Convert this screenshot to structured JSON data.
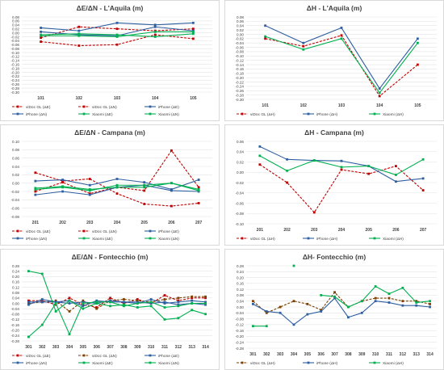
{
  "chart_data": [
    {
      "type": "line",
      "title": "ΔE/ΔN - L'Aquila (m)",
      "categories": [
        "101",
        "102",
        "103",
        "104",
        "105"
      ],
      "ylim": [
        -0.3,
        0.08
      ],
      "ystep": 0.02,
      "ydecimals": 2,
      "grid": true,
      "legend_columns": 3,
      "series": [
        {
          "name": "viDoc GL (ΔE)",
          "color": "#c00000",
          "dashed": true,
          "marker": "square",
          "values": [
            -0.045,
            -0.065,
            -0.06,
            -0.01,
            -0.03
          ]
        },
        {
          "name": "viDoc GL (ΔN)",
          "color": "#c00000",
          "dashed": true,
          "marker": "square",
          "values": [
            -0.025,
            0.03,
            0.02,
            0.01,
            0.02
          ]
        },
        {
          "name": "iPhone (ΔE)",
          "color": "#2e5fa1",
          "dashed": false,
          "marker": "square",
          "values": [
            0.025,
            0.01,
            0.05,
            0.04,
            0.05
          ]
        },
        {
          "name": "iPhone (ΔN)",
          "color": "#2e5fa1",
          "dashed": false,
          "marker": "square",
          "values": [
            0.005,
            -0.01,
            -0.015,
            0.03,
            0.01
          ]
        },
        {
          "name": "Xiaomi (ΔE)",
          "color": "#00b050",
          "dashed": false,
          "marker": "square",
          "values": [
            -0.01,
            -0.005,
            -0.01,
            -0.02,
            -0.005
          ]
        },
        {
          "name": "Xiaomi (ΔN)",
          "color": "#00b050",
          "dashed": false,
          "marker": "square",
          "values": [
            -0.015,
            -0.015,
            -0.02,
            0.005,
            0.005
          ]
        }
      ]
    },
    {
      "type": "line",
      "title": "ΔH - L'Aquila (m)",
      "categories": [
        "101",
        "102",
        "103",
        "104",
        "105"
      ],
      "ylim": [
        -0.3,
        0.08
      ],
      "ystep": 0.02,
      "ydecimals": 2,
      "grid": true,
      "legend_columns": 3,
      "series": [
        {
          "name": "viDoc GL (ΔH)",
          "color": "#c00000",
          "dashed": true,
          "marker": "square",
          "values": [
            -0.02,
            -0.055,
            -0.005,
            -0.285,
            -0.14
          ]
        },
        {
          "name": "iPhone (ΔH)",
          "color": "#2e5fa1",
          "dashed": false,
          "marker": "square",
          "values": [
            0.04,
            -0.04,
            0.03,
            -0.25,
            -0.02
          ]
        },
        {
          "name": "Xiaomi (ΔH)",
          "color": "#00b050",
          "dashed": false,
          "marker": "square",
          "values": [
            -0.01,
            -0.07,
            -0.02,
            -0.27,
            -0.04
          ]
        }
      ]
    },
    {
      "type": "line",
      "title": "ΔE/ΔN - Campana (m)",
      "categories": [
        "201",
        "202",
        "203",
        "204",
        "205",
        "206",
        "207"
      ],
      "ylim": [
        -0.08,
        0.1
      ],
      "ystep": 0.02,
      "ydecimals": 2,
      "grid": true,
      "legend_columns": 3,
      "series": [
        {
          "name": "viDoc GL (ΔE)",
          "color": "#c00000",
          "dashed": true,
          "marker": "square",
          "values": [
            0.025,
            0.005,
            0.01,
            -0.025,
            -0.05,
            -0.055,
            -0.048
          ]
        },
        {
          "name": "viDoc GL (ΔN)",
          "color": "#c00000",
          "dashed": true,
          "marker": "square",
          "values": [
            -0.02,
            0.002,
            -0.025,
            -0.01,
            -0.018,
            0.078,
            -0.01
          ]
        },
        {
          "name": "iPhone (ΔE)",
          "color": "#2e5fa1",
          "dashed": false,
          "marker": "square",
          "values": [
            0.005,
            0.008,
            -0.005,
            0.01,
            0.002,
            -0.015,
            0.008
          ]
        },
        {
          "name": "iPhone (ΔN)",
          "color": "#2e5fa1",
          "dashed": false,
          "marker": "square",
          "values": [
            -0.028,
            -0.02,
            -0.028,
            -0.01,
            -0.005,
            -0.018,
            -0.02
          ]
        },
        {
          "name": "Xiaomi (ΔE)",
          "color": "#00b050",
          "dashed": false,
          "marker": "square",
          "values": [
            -0.015,
            -0.01,
            -0.018,
            -0.005,
            -0.005,
            0.0,
            -0.015
          ]
        },
        {
          "name": "Xiaomi (ΔN)",
          "color": "#00b050",
          "dashed": false,
          "marker": "square",
          "values": [
            -0.012,
            -0.008,
            -0.015,
            -0.01,
            -0.01,
            0.0,
            -0.018
          ]
        }
      ]
    },
    {
      "type": "line",
      "title": "ΔH - Campana (m)",
      "categories": [
        "201",
        "202",
        "203",
        "204",
        "205",
        "206",
        "207"
      ],
      "ylim": [
        -0.1,
        0.06
      ],
      "ystep": 0.02,
      "ydecimals": 2,
      "grid": true,
      "legend_columns": 3,
      "series": [
        {
          "name": "viDoc GL (ΔH)",
          "color": "#c00000",
          "dashed": true,
          "marker": "square",
          "values": [
            0.015,
            -0.02,
            -0.078,
            0.005,
            -0.003,
            0.012,
            -0.035
          ]
        },
        {
          "name": "iPhone (ΔH)",
          "color": "#2e5fa1",
          "dashed": false,
          "marker": "square",
          "values": [
            0.05,
            0.025,
            0.023,
            0.022,
            0.012,
            -0.018,
            -0.012
          ]
        },
        {
          "name": "Xiaomi (ΔH)",
          "color": "#00b050",
          "dashed": false,
          "marker": "square",
          "values": [
            0.032,
            0.003,
            0.023,
            0.01,
            0.012,
            -0.005,
            0.025
          ]
        }
      ]
    },
    {
      "type": "line",
      "title": "ΔE/ΔN - Fontecchio (m)",
      "categories": [
        "301",
        "302",
        "303",
        "304",
        "305",
        "306",
        "307",
        "308",
        "309",
        "310",
        "311",
        "312",
        "313",
        "314"
      ],
      "ylim": [
        -0.28,
        0.28
      ],
      "ystep": 0.04,
      "ydecimals": 2,
      "grid": true,
      "legend_columns": 3,
      "series": [
        {
          "name": "viDoc GL (ΔE)",
          "color": "#c00000",
          "dashed": true,
          "marker": "square",
          "values": [
            0.02,
            0.02,
            -0.01,
            0.04,
            -0.01,
            -0.03,
            0.04,
            0.0,
            0.03,
            0.0,
            0.06,
            0.02,
            0.04,
            0.04
          ]
        },
        {
          "name": "viDoc GL (ΔN)",
          "color": "#7b3f00",
          "dashed": true,
          "marker": "square",
          "values": [
            0.0,
            0.01,
            0.02,
            -0.06,
            0.02,
            -0.04,
            0.02,
            0.03,
            0.02,
            0.01,
            0.03,
            0.04,
            0.05,
            0.05
          ]
        },
        {
          "name": "iPhone (ΔE)",
          "color": "#2e5fa1",
          "dashed": false,
          "marker": "square",
          "values": [
            0.01,
            0.01,
            0.01,
            0.0,
            0.01,
            0.0,
            0.02,
            0.01,
            0.0,
            0.03,
            0.0,
            0.01,
            0.02,
            0.01
          ]
        },
        {
          "name": "iPhone (ΔN)",
          "color": "#2e5fa1",
          "dashed": false,
          "marker": "square",
          "values": [
            -0.01,
            0.03,
            0.01,
            0.02,
            -0.02,
            0.02,
            0.01,
            0.01,
            0.01,
            0.0,
            0.01,
            -0.01,
            0.0,
            -0.01
          ]
        },
        {
          "name": "Xiaomi (ΔE)",
          "color": "#00b050",
          "dashed": false,
          "marker": "square",
          "values": [
            0.24,
            0.22,
            -0.06,
            0.02,
            -0.04,
            0.0,
            -0.02,
            -0.01,
            -0.03,
            -0.02,
            -0.12,
            -0.11,
            -0.05,
            -0.08
          ]
        },
        {
          "name": "Xiaomi (ΔN)",
          "color": "#00b050",
          "dashed": false,
          "marker": "square",
          "values": [
            -0.25,
            -0.16,
            0.0,
            -0.23,
            0.0,
            0.01,
            0.01,
            -0.02,
            0.0,
            0.01,
            -0.03,
            -0.02,
            0.0,
            0.0
          ]
        }
      ]
    },
    {
      "type": "line",
      "title": "ΔH- Fontecchio (m)",
      "categories": [
        "301",
        "302",
        "303",
        "304",
        "305",
        "306",
        "307",
        "308",
        "309",
        "310",
        "311",
        "312",
        "313",
        "314"
      ],
      "ylim": [
        -0.28,
        0.28
      ],
      "ystep": 0.04,
      "ydecimals": 2,
      "grid": true,
      "legend_columns": 3,
      "series": [
        {
          "name": "viDoc GL (ΔH)",
          "color": "#7b3f00",
          "dashed": true,
          "marker": "square",
          "values": [
            0.04,
            -0.04,
            0.0,
            0.04,
            0.02,
            -0.02,
            0.1,
            0.0,
            0.04,
            0.06,
            0.06,
            0.04,
            0.04,
            0.02
          ]
        },
        {
          "name": "iPhone (ΔH)",
          "color": "#2e5fa1",
          "dashed": false,
          "marker": "square",
          "values": [
            0.02,
            -0.03,
            -0.04,
            -0.12,
            -0.05,
            -0.03,
            0.06,
            -0.07,
            -0.04,
            0.04,
            0.03,
            0.01,
            0.01,
            0.0
          ]
        },
        {
          "name": "Xiaomi (ΔH)",
          "color": "#00b050",
          "dashed": false,
          "marker": "square",
          "values": [
            -0.13,
            -0.13,
            null,
            0.28,
            null,
            0.08,
            0.07,
            0.0,
            0.04,
            0.14,
            0.09,
            0.13,
            0.03,
            0.04
          ]
        }
      ]
    }
  ]
}
